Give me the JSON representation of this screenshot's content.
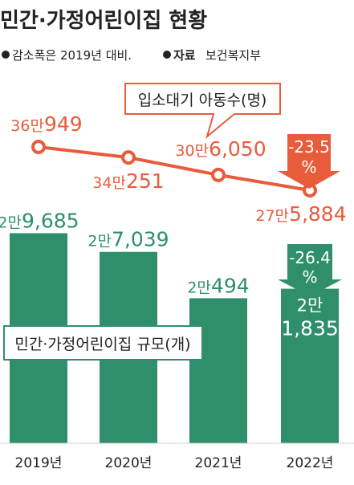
{
  "header": {
    "title": "민간·가정어린이집 현황",
    "note_text": "감소폭은 2019년 대비.",
    "source_label": "자료",
    "source_text": "보건복지부"
  },
  "colors": {
    "line_orange": "#e85c3c",
    "bar_green": "#2f8f6a",
    "text_dark": "#222222",
    "callout_border": "#e85c3c"
  },
  "chart_data": [
    {
      "type": "line",
      "title": "입소대기 아동수(명)",
      "categories": [
        "2019년",
        "2020년",
        "2021년",
        "2022년"
      ],
      "values": [
        360949,
        340251,
        306050,
        275884
      ],
      "value_labels": [
        {
          "big": "36만",
          "small": "949"
        },
        {
          "big": "34만",
          "small": "251"
        },
        {
          "big": "30만",
          "small": "6,050"
        },
        {
          "big": "27만",
          "small": "5,884"
        }
      ],
      "change_badge": {
        "line1": "-23.5",
        "line2": "%"
      }
    },
    {
      "type": "bar",
      "title": "민간·가정어린이집 규모(개)",
      "categories": [
        "2019년",
        "2020년",
        "2021년",
        "2022년"
      ],
      "values": [
        29685,
        27039,
        20494,
        21835
      ],
      "value_labels": [
        {
          "big": "2만",
          "small": "9,685"
        },
        {
          "big": "2만",
          "small": "7,039"
        },
        {
          "big": "2만",
          "small": "494"
        },
        {
          "big": "2만",
          "small": "1,835"
        }
      ],
      "change_badge": {
        "line1": "-26.4",
        "line2": "%"
      }
    }
  ]
}
